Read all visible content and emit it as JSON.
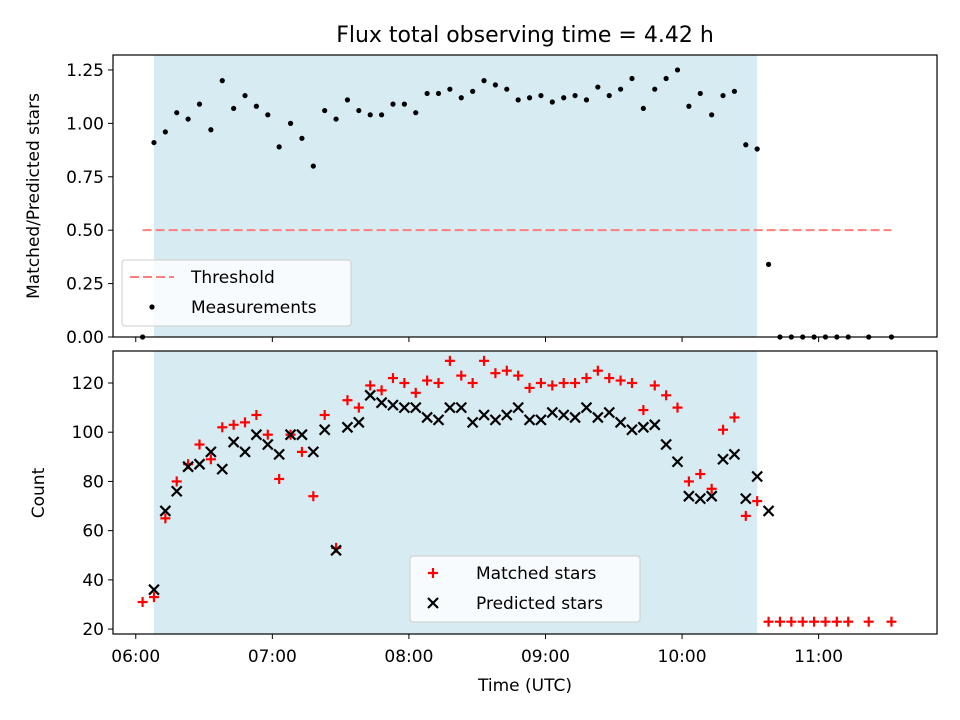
{
  "chart_data": [
    {
      "type": "scatter",
      "title": "Flux total observing time = 4.42 h",
      "xlabel": "",
      "ylabel": "Matched/Predicted stars",
      "xlim": [
        "05:50",
        "11:52"
      ],
      "ylim": [
        0,
        1.32
      ],
      "yticks": [
        "0.00",
        "0.25",
        "0.50",
        "0.75",
        "1.00",
        "1.25"
      ],
      "shaded_span": [
        "06:08",
        "10:33"
      ],
      "shaded_color": "#add8e6",
      "threshold": {
        "name": "Threshold",
        "y": 0.5,
        "x_range": [
          "06:03",
          "11:32"
        ],
        "color": "#ff7f7f",
        "style": "dashed"
      },
      "legend": {
        "position": "lower-left",
        "entries": [
          "Threshold",
          "Measurements"
        ]
      },
      "series": [
        {
          "name": "Measurements",
          "marker": "dot",
          "color": "#000000",
          "x": [
            "06:03",
            "06:08",
            "06:13",
            "06:18",
            "06:23",
            "06:28",
            "06:33",
            "06:38",
            "06:43",
            "06:48",
            "06:53",
            "06:58",
            "07:03",
            "07:08",
            "07:13",
            "07:18",
            "07:23",
            "07:28",
            "07:33",
            "07:38",
            "07:43",
            "07:48",
            "07:53",
            "07:58",
            "08:03",
            "08:08",
            "08:13",
            "08:18",
            "08:23",
            "08:28",
            "08:33",
            "08:38",
            "08:43",
            "08:48",
            "08:53",
            "08:58",
            "09:03",
            "09:08",
            "09:13",
            "09:18",
            "09:23",
            "09:28",
            "09:33",
            "09:38",
            "09:43",
            "09:48",
            "09:53",
            "09:58",
            "10:03",
            "10:08",
            "10:13",
            "10:18",
            "10:23",
            "10:28",
            "10:33",
            "10:38",
            "10:43",
            "10:48",
            "10:53",
            "10:58",
            "11:03",
            "11:08",
            "11:13",
            "11:22",
            "11:32"
          ],
          "y": [
            0.0,
            0.91,
            0.96,
            1.05,
            1.02,
            1.09,
            0.97,
            1.2,
            1.07,
            1.13,
            1.08,
            1.04,
            0.89,
            1.0,
            0.93,
            0.8,
            1.06,
            1.02,
            1.11,
            1.06,
            1.04,
            1.04,
            1.09,
            1.09,
            1.05,
            1.14,
            1.14,
            1.16,
            1.12,
            1.15,
            1.2,
            1.18,
            1.16,
            1.11,
            1.12,
            1.13,
            1.1,
            1.12,
            1.13,
            1.11,
            1.17,
            1.13,
            1.16,
            1.21,
            1.07,
            1.16,
            1.21,
            1.25,
            1.08,
            1.14,
            1.04,
            1.13,
            1.15,
            0.9,
            0.88,
            0.34,
            0.0,
            0.0,
            0.0,
            0.0,
            0.0,
            0.0,
            0.0,
            0.0,
            0.0
          ]
        }
      ]
    },
    {
      "type": "scatter",
      "xlabel": "Time (UTC)",
      "ylabel": "Count",
      "xlim": [
        "05:50",
        "11:52"
      ],
      "ylim": [
        18,
        133
      ],
      "xticks": [
        "06:00",
        "07:00",
        "08:00",
        "09:00",
        "10:00",
        "11:00"
      ],
      "yticks": [
        "20",
        "40",
        "60",
        "80",
        "100",
        "120"
      ],
      "shaded_span": [
        "06:08",
        "10:33"
      ],
      "shaded_color": "#add8e6",
      "legend": {
        "position": "lower-center",
        "entries": [
          "Matched stars",
          "Predicted stars"
        ]
      },
      "series": [
        {
          "name": "Matched stars",
          "marker": "plus",
          "color": "#ff0000",
          "x": [
            "06:03",
            "06:08",
            "06:13",
            "06:18",
            "06:23",
            "06:28",
            "06:33",
            "06:38",
            "06:43",
            "06:48",
            "06:53",
            "06:58",
            "07:03",
            "07:08",
            "07:13",
            "07:18",
            "07:23",
            "07:28",
            "07:33",
            "07:38",
            "07:43",
            "07:48",
            "07:53",
            "07:58",
            "08:03",
            "08:08",
            "08:13",
            "08:18",
            "08:23",
            "08:28",
            "08:33",
            "08:38",
            "08:43",
            "08:48",
            "08:53",
            "08:58",
            "09:03",
            "09:08",
            "09:13",
            "09:18",
            "09:23",
            "09:28",
            "09:33",
            "09:38",
            "09:43",
            "09:48",
            "09:53",
            "09:58",
            "10:03",
            "10:08",
            "10:13",
            "10:18",
            "10:23",
            "10:28",
            "10:33",
            "10:38",
            "10:43",
            "10:48",
            "10:53",
            "10:58",
            "11:03",
            "11:08",
            "11:13",
            "11:22",
            "11:32"
          ],
          "y": [
            31,
            33,
            65,
            80,
            87,
            95,
            89,
            102,
            103,
            104,
            107,
            99,
            81,
            99,
            92,
            74,
            107,
            53,
            113,
            110,
            119,
            117,
            122,
            120,
            116,
            121,
            120,
            129,
            123,
            120,
            129,
            124,
            125,
            123,
            118,
            120,
            119,
            120,
            120,
            122,
            125,
            122,
            121,
            120,
            109,
            119,
            115,
            110,
            80,
            83,
            77,
            101,
            106,
            66,
            72,
            23,
            23,
            23,
            23,
            23,
            23,
            23,
            23,
            23,
            23
          ]
        },
        {
          "name": "Predicted stars",
          "marker": "x",
          "color": "#000000",
          "x": [
            "06:08",
            "06:13",
            "06:18",
            "06:23",
            "06:28",
            "06:33",
            "06:38",
            "06:43",
            "06:48",
            "06:53",
            "06:58",
            "07:03",
            "07:08",
            "07:13",
            "07:18",
            "07:23",
            "07:28",
            "07:33",
            "07:38",
            "07:43",
            "07:48",
            "07:53",
            "07:58",
            "08:03",
            "08:08",
            "08:13",
            "08:18",
            "08:23",
            "08:28",
            "08:33",
            "08:38",
            "08:43",
            "08:48",
            "08:53",
            "08:58",
            "09:03",
            "09:08",
            "09:13",
            "09:18",
            "09:23",
            "09:28",
            "09:33",
            "09:38",
            "09:43",
            "09:48",
            "09:53",
            "09:58",
            "10:03",
            "10:08",
            "10:13",
            "10:18",
            "10:23",
            "10:28",
            "10:33",
            "10:38"
          ],
          "y": [
            36,
            68,
            76,
            86,
            87,
            92,
            85,
            96,
            92,
            99,
            95,
            91,
            99,
            99,
            92,
            101,
            52,
            102,
            104,
            115,
            112,
            111,
            110,
            110,
            106,
            105,
            110,
            110,
            104,
            107,
            105,
            107,
            110,
            105,
            105,
            108,
            107,
            106,
            110,
            106,
            108,
            104,
            101,
            102,
            103,
            95,
            88,
            74,
            73,
            74,
            89,
            91,
            73,
            82,
            68
          ]
        }
      ]
    }
  ]
}
